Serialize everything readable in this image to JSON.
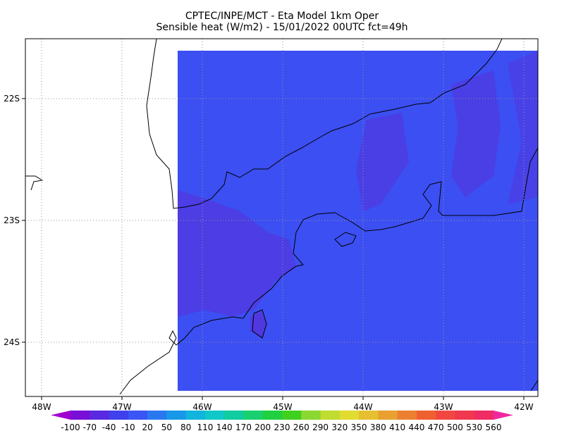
{
  "header": {
    "title": "CPTEC/INPE/MCT -  Eta Model 1km Oper",
    "subtitle": "Sensible heat (W/m2) - 15/01/2022 00UTC fct=49h"
  },
  "lon_labels": [
    "48W",
    "47W",
    "46W",
    "45W",
    "44W",
    "43W",
    "42W"
  ],
  "lat_labels": [
    "22S",
    "23S",
    "24S"
  ],
  "colorbar": {
    "labels": [
      "-100",
      "-70",
      "-40",
      "-10",
      "20",
      "50",
      "80",
      "110",
      "140",
      "170",
      "200",
      "230",
      "260",
      "290",
      "320",
      "350",
      "380",
      "410",
      "440",
      "470",
      "500",
      "530",
      "560"
    ],
    "colors": [
      "#a000d0",
      "#7a10d8",
      "#5a2ae0",
      "#4040ec",
      "#3c55f5",
      "#2a78f0",
      "#1898e8",
      "#10b4dc",
      "#10c8c8",
      "#10cca0",
      "#18d070",
      "#20d040",
      "#40d020",
      "#8ad830",
      "#c0dc30",
      "#e0dc30",
      "#e6c030",
      "#e8a030",
      "#ec8030",
      "#ee6030",
      "#f04840",
      "#f03850",
      "#f02c64",
      "#f028a0"
    ]
  }
}
